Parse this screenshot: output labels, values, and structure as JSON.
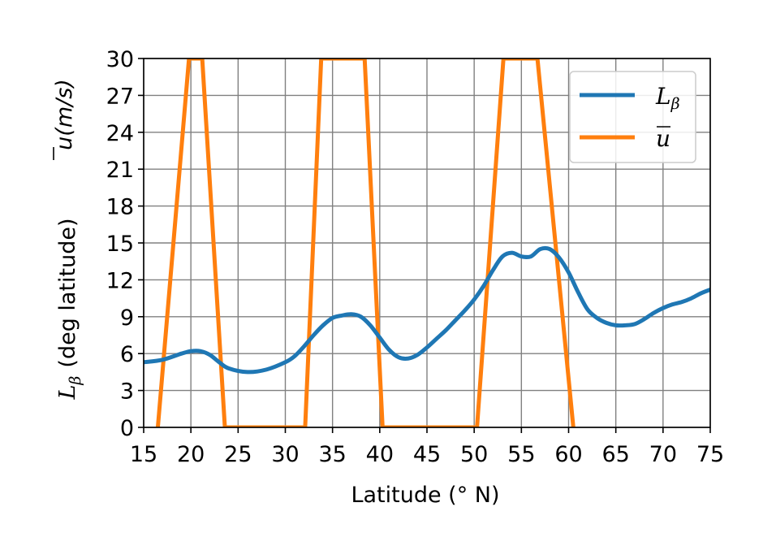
{
  "chart_data": {
    "type": "line",
    "xlabel": "Latitude (° N)",
    "ylabel_lower": "(deg latitude)",
    "ylabel_lower_symbol": "L",
    "ylabel_lower_sub": "β",
    "ylabel_upper": "u(m/s)",
    "xlim": [
      15,
      75
    ],
    "ylim": [
      0,
      30
    ],
    "xticks": [
      "15",
      "20",
      "25",
      "30",
      "35",
      "40",
      "45",
      "50",
      "55",
      "60",
      "65",
      "70",
      "75"
    ],
    "yticks": [
      "0",
      "3",
      "6",
      "9",
      "12",
      "15",
      "18",
      "21",
      "24",
      "27",
      "30"
    ],
    "grid": true,
    "legend": "top-right",
    "series": [
      {
        "name": "L",
        "name_sub": "β",
        "color": "#1f77b4",
        "x": [
          15,
          17,
          19,
          20,
          21,
          22,
          23,
          24,
          26,
          28,
          30,
          31,
          32,
          33,
          34,
          35,
          36,
          37,
          38,
          39,
          40,
          41,
          42,
          43,
          44,
          45,
          46,
          47,
          48,
          49,
          50,
          51,
          52,
          53,
          54,
          55,
          56,
          57,
          58,
          59,
          60,
          61,
          62,
          63,
          64,
          65,
          66,
          67,
          68,
          69,
          70,
          71,
          72,
          73,
          74,
          75
        ],
        "y": [
          5.3,
          5.5,
          6.0,
          6.2,
          6.2,
          5.9,
          5.3,
          4.8,
          4.5,
          4.7,
          5.3,
          5.8,
          6.6,
          7.5,
          8.3,
          8.9,
          9.1,
          9.2,
          9.0,
          8.3,
          7.3,
          6.3,
          5.7,
          5.6,
          5.9,
          6.5,
          7.2,
          7.9,
          8.7,
          9.5,
          10.4,
          11.5,
          12.8,
          13.9,
          14.2,
          13.9,
          13.9,
          14.5,
          14.5,
          13.8,
          12.6,
          11.0,
          9.6,
          8.9,
          8.5,
          8.3,
          8.3,
          8.4,
          8.8,
          9.3,
          9.7,
          10.0,
          10.2,
          10.5,
          10.9,
          11.2
        ]
      },
      {
        "name": "u",
        "color": "#ff7f0e",
        "x": [
          16.5,
          19.8,
          21.2,
          23.6,
          32.1,
          33.8,
          38.4,
          40.3,
          50.3,
          53.1,
          56.7,
          60.5
        ],
        "y": [
          0,
          30,
          30,
          0,
          0,
          30,
          30,
          0,
          0,
          30,
          30,
          0
        ]
      }
    ]
  }
}
